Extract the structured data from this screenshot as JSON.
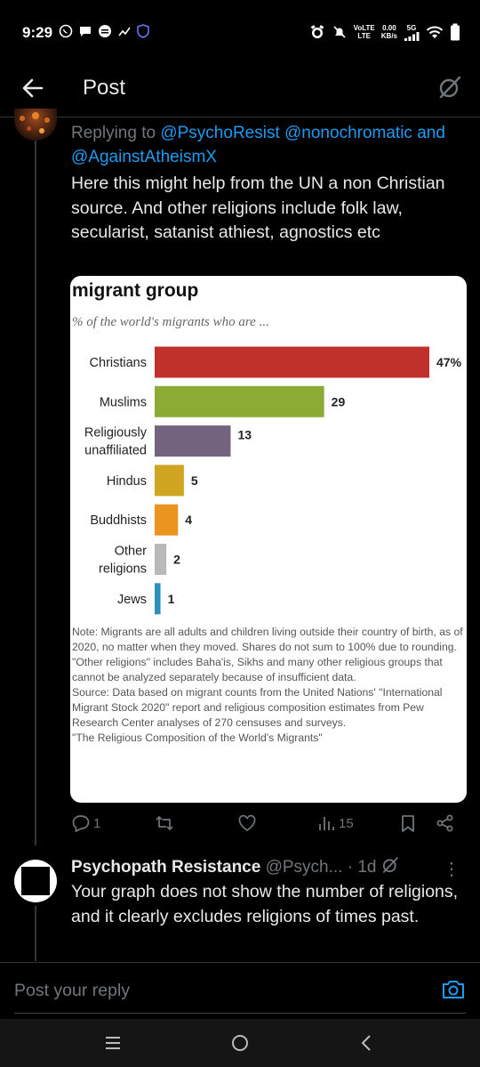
{
  "status": {
    "time": "9:29",
    "volte": "VoLTE",
    "lte": "LTE",
    "speed_value": "0.00",
    "speed_unit": "KB/s",
    "network": "5G"
  },
  "header": {
    "title": "Post"
  },
  "tweet1": {
    "replying_prefix": "Replying to",
    "mentions": [
      "@PsychoResist",
      "@nonochromatic",
      "@AgainstAtheismX"
    ],
    "and": "and",
    "text": "Here this might help from the UN a non Christian source. And other religions include folk law, secularist, satanist athiest, agnostics etc",
    "actions": {
      "replies": "1",
      "retweets": "",
      "likes": "",
      "views": "15"
    }
  },
  "chart": {
    "title": "migrant group",
    "subtitle": "% of the world's migrants who are ...",
    "note": "Note: Migrants are all adults and children living outside their country of birth, as of 2020, no matter when they moved. Shares do not sum to 100% due to rounding. \"Other religions\" includes Baha'is, Sikhs and many other religious groups that cannot be analyzed separately because of insufficient data.",
    "source": "Source: Data based on migrant counts from the United Nations' \"International Migrant Stock 2020\" report and religious composition estimates from Pew Research Center analyses of 270 censuses and surveys.",
    "footer": "\"The Religious Composition of the World's Migrants\""
  },
  "chart_data": {
    "type": "bar",
    "orientation": "horizontal",
    "title": "migrant group",
    "subtitle": "% of the world's migrants who are ...",
    "categories": [
      "Christians",
      "Muslims",
      "Religiously unaffiliated",
      "Hindus",
      "Buddhists",
      "Other religions",
      "Jews"
    ],
    "category_lines": [
      [
        "Christians"
      ],
      [
        "Muslims"
      ],
      [
        "Religiously",
        "unaffiliated"
      ],
      [
        "Hindus"
      ],
      [
        "Buddhists"
      ],
      [
        "Other",
        "religions"
      ],
      [
        "Jews"
      ]
    ],
    "values": [
      47,
      29,
      13,
      5,
      4,
      2,
      1
    ],
    "value_labels": [
      "47%",
      "29",
      "13",
      "5",
      "4",
      "2",
      "1"
    ],
    "colors": [
      "#c0312b",
      "#8cab35",
      "#74637f",
      "#cfa521",
      "#e9951f",
      "#b9b9b9",
      "#2e8fbd"
    ],
    "xlim": [
      0,
      47
    ],
    "grid": false,
    "legend": "none"
  },
  "tweet2": {
    "name": "Psychopath Resistance",
    "handle": "@Psych...",
    "time": "· 1d",
    "text": "Your graph does not show the number of religions, and it clearly excludes religions of times past."
  },
  "composer": {
    "placeholder": "Post your reply"
  },
  "colors": {
    "accent": "#1d9bf0",
    "background": "#000000",
    "muted": "#71767b"
  }
}
